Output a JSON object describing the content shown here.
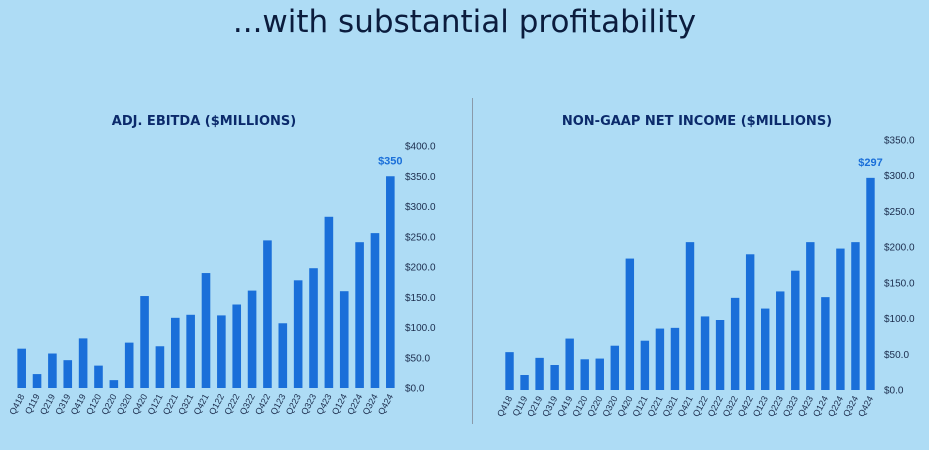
{
  "page": {
    "headline": "...with substantial profitability"
  },
  "colors": {
    "background": "#aedcf5",
    "bar": "#1a6fd9",
    "highlight_label": "#1a6fd9",
    "title": "#0b2a6b"
  },
  "chart_data": [
    {
      "type": "bar",
      "title": "ADJ. EBITDA ($MILLIONS)",
      "categories": [
        "Q418",
        "Q119",
        "Q219",
        "Q319",
        "Q419",
        "Q120",
        "Q220",
        "Q320",
        "Q420",
        "Q121",
        "Q221",
        "Q321",
        "Q421",
        "Q122",
        "Q222",
        "Q322",
        "Q422",
        "Q123",
        "Q223",
        "Q323",
        "Q423",
        "Q124",
        "Q224",
        "Q324",
        "Q424"
      ],
      "values": [
        65,
        23,
        57,
        46,
        82,
        37,
        13,
        75,
        152,
        69,
        116,
        121,
        190,
        120,
        138,
        161,
        244,
        107,
        178,
        198,
        283,
        160,
        241,
        256,
        350
      ],
      "ylim": [
        0,
        400
      ],
      "yticks": [
        "$0.0",
        "$50.0",
        "$100.0",
        "$150.0",
        "$200.0",
        "$250.0",
        "$300.0",
        "$350.0",
        "$400.0"
      ],
      "y_axis_side": "right",
      "data_label": {
        "index": 24,
        "text": "$350"
      },
      "grid": false,
      "xlabel": "",
      "ylabel": ""
    },
    {
      "type": "bar",
      "title": "NON-GAAP NET INCOME ($MILLIONS)",
      "categories": [
        "Q418",
        "Q119",
        "Q219",
        "Q319",
        "Q419",
        "Q120",
        "Q220",
        "Q320",
        "Q420",
        "Q121",
        "Q221",
        "Q321",
        "Q421",
        "Q122",
        "Q222",
        "Q322",
        "Q422",
        "Q123",
        "Q223",
        "Q323",
        "Q423",
        "Q124",
        "Q224",
        "Q324",
        "Q424"
      ],
      "values": [
        53,
        21,
        45,
        35,
        72,
        43,
        44,
        62,
        184,
        69,
        86,
        87,
        207,
        103,
        98,
        129,
        190,
        114,
        138,
        167,
        207,
        130,
        198,
        207,
        297
      ],
      "ylim": [
        0,
        350
      ],
      "yticks": [
        "$0.0",
        "$50.0",
        "$100.0",
        "$150.0",
        "$200.0",
        "$250.0",
        "$300.0",
        "$350.0"
      ],
      "y_axis_side": "right",
      "data_label": {
        "index": 24,
        "text": "$297"
      },
      "grid": false,
      "xlabel": "",
      "ylabel": ""
    }
  ]
}
